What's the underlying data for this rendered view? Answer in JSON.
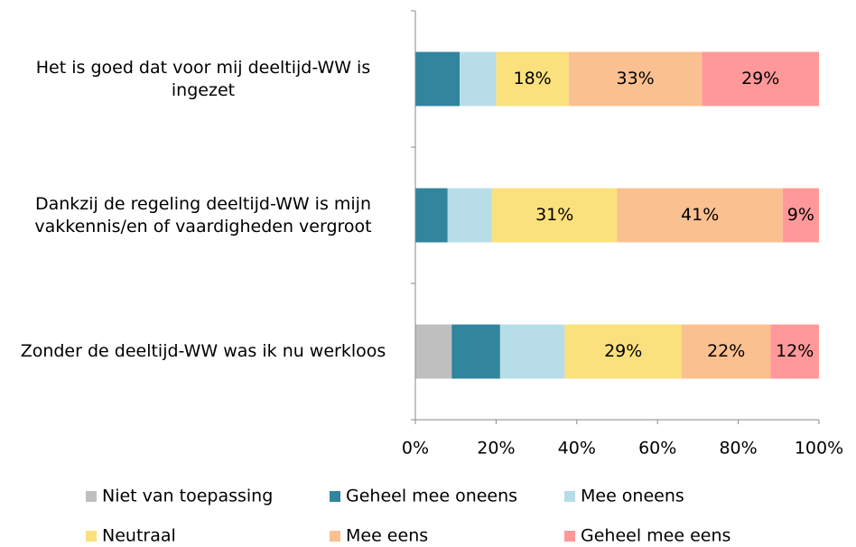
{
  "chart_data": {
    "type": "stacked-barh",
    "categories": [
      "Het is goed dat voor mij deeltijd-WW is ingezet",
      "Dankzij de regeling deeltijd-WW is mijn vakkennis/en of vaardigheden vergroot",
      "Zonder de deeltijd-WW was ik nu werkloos"
    ],
    "series": [
      {
        "name": "Niet van toepassing",
        "color": "#bfbfbf",
        "values": [
          0,
          0,
          9
        ],
        "value_labels": [
          null,
          null,
          null
        ]
      },
      {
        "name": "Geheel mee oneens",
        "color": "#31859c",
        "values": [
          11,
          8,
          12
        ],
        "value_labels": [
          null,
          null,
          null
        ]
      },
      {
        "name": "Mee oneens",
        "color": "#b7dde8",
        "values": [
          9,
          11,
          16
        ],
        "value_labels": [
          null,
          null,
          null
        ]
      },
      {
        "name": "Neutraal",
        "color": "#fae17d",
        "values": [
          18,
          31,
          29
        ],
        "value_labels": [
          "18%",
          "31%",
          "29%"
        ]
      },
      {
        "name": "Mee eens",
        "color": "#fac090",
        "values": [
          33,
          41,
          22
        ],
        "value_labels": [
          "33%",
          "41%",
          "22%"
        ]
      },
      {
        "name": "Geheel mee eens",
        "color": "#ff9999",
        "values": [
          29,
          9,
          12
        ],
        "value_labels": [
          "29%",
          "9%",
          "12%"
        ]
      }
    ],
    "xlim": [
      0,
      100
    ],
    "xticks": [
      {
        "value": 0,
        "label": "0%"
      },
      {
        "value": 20,
        "label": "20%"
      },
      {
        "value": 40,
        "label": "40%"
      },
      {
        "value": 60,
        "label": "60%"
      },
      {
        "value": 80,
        "label": "80%"
      },
      {
        "value": 100,
        "label": "100%"
      }
    ],
    "legend": "bottom"
  }
}
